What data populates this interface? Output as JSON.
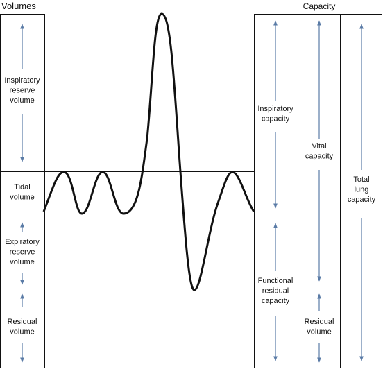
{
  "header": {
    "volumes": "Volumes",
    "capacity": "Capacity"
  },
  "volumes": {
    "inspiratory_reserve": [
      "Inspiratory",
      "reserve",
      "volume"
    ],
    "tidal": [
      "Tidal",
      "volume"
    ],
    "expiratory_reserve": [
      "Expiratory",
      "reserve",
      "volume"
    ],
    "residual": [
      "Residual",
      "volume"
    ]
  },
  "capacities": {
    "inspiratory": [
      "Inspiratory",
      "capacity"
    ],
    "functional_residual": [
      "Functional",
      "residual",
      "capacity"
    ],
    "vital": [
      "Vital",
      "capacity"
    ],
    "residual_volume": [
      "Residual",
      "volume"
    ],
    "total_lung": [
      "Total",
      "lung",
      "capacity"
    ]
  }
}
